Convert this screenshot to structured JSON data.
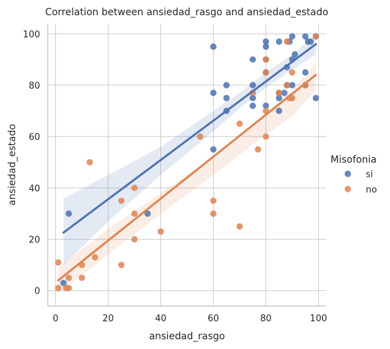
{
  "chart_data": {
    "type": "scatter",
    "title": "Correlation between ansiedad_rasgo and ansiedad_estado",
    "xlabel": "ansiedad_rasgo",
    "ylabel": "ansiedad_estado",
    "xlim": [
      -3,
      103
    ],
    "ylim": [
      -6,
      104
    ],
    "xticks": [
      0,
      20,
      40,
      60,
      80,
      100
    ],
    "yticks": [
      0,
      20,
      40,
      60,
      80,
      100
    ],
    "grid": true,
    "legend": {
      "title": "Misofonia",
      "position": "right"
    },
    "series": [
      {
        "name": "si",
        "color": "#4c72b0",
        "points": [
          [
            3,
            3
          ],
          [
            5,
            30
          ],
          [
            35,
            30
          ],
          [
            60,
            55
          ],
          [
            60,
            77
          ],
          [
            60,
            95
          ],
          [
            65,
            75
          ],
          [
            65,
            80
          ],
          [
            65,
            70
          ],
          [
            75,
            72
          ],
          [
            75,
            75
          ],
          [
            75,
            80
          ],
          [
            75,
            90
          ],
          [
            80,
            72
          ],
          [
            80,
            85
          ],
          [
            80,
            90
          ],
          [
            80,
            95
          ],
          [
            80,
            97
          ],
          [
            85,
            70
          ],
          [
            85,
            75
          ],
          [
            85,
            77
          ],
          [
            85,
            97
          ],
          [
            87,
            77
          ],
          [
            88,
            80
          ],
          [
            88,
            87
          ],
          [
            89,
            97
          ],
          [
            90,
            80
          ],
          [
            90,
            90
          ],
          [
            90,
            99
          ],
          [
            91,
            92
          ],
          [
            95,
            80
          ],
          [
            95,
            85
          ],
          [
            95,
            99
          ],
          [
            96,
            97
          ],
          [
            97,
            97
          ],
          [
            99,
            99
          ],
          [
            99,
            75
          ]
        ],
        "fit": [
          [
            3,
            22.6
          ],
          [
            99,
            96
          ]
        ],
        "ci_upper": [
          [
            3,
            36
          ],
          [
            20,
            45
          ],
          [
            40,
            56
          ],
          [
            60,
            70
          ],
          [
            70,
            77
          ],
          [
            80,
            85
          ],
          [
            90,
            92
          ],
          [
            99,
            99.5
          ]
        ],
        "ci_lower": [
          [
            3,
            10
          ],
          [
            20,
            27
          ],
          [
            40,
            45
          ],
          [
            60,
            62
          ],
          [
            70,
            71
          ],
          [
            80,
            79
          ],
          [
            90,
            86
          ],
          [
            99,
            92
          ]
        ]
      },
      {
        "name": "no",
        "color": "#dd8452",
        "points": [
          [
            1,
            11
          ],
          [
            1,
            1
          ],
          [
            4,
            1
          ],
          [
            5,
            1
          ],
          [
            5,
            5
          ],
          [
            10,
            5
          ],
          [
            10,
            10
          ],
          [
            13,
            50
          ],
          [
            15,
            13
          ],
          [
            25,
            10
          ],
          [
            25,
            35
          ],
          [
            30,
            20
          ],
          [
            30,
            30
          ],
          [
            30,
            40
          ],
          [
            40,
            23
          ],
          [
            55,
            60
          ],
          [
            60,
            30
          ],
          [
            60,
            35
          ],
          [
            70,
            25
          ],
          [
            70,
            65
          ],
          [
            75,
            77
          ],
          [
            77,
            55
          ],
          [
            80,
            60
          ],
          [
            80,
            70
          ],
          [
            80,
            85
          ],
          [
            80,
            90
          ],
          [
            85,
            77
          ],
          [
            88,
            80
          ],
          [
            88,
            97
          ],
          [
            89,
            75
          ],
          [
            90,
            75
          ],
          [
            90,
            85
          ],
          [
            95,
            80
          ],
          [
            99,
            99
          ]
        ],
        "fit": [
          [
            1,
            4
          ],
          [
            99,
            84
          ]
        ],
        "ci_upper": [
          [
            1,
            9
          ],
          [
            20,
            24
          ],
          [
            40,
            38
          ],
          [
            60,
            52
          ],
          [
            75,
            65
          ],
          [
            90,
            78
          ],
          [
            99,
            89
          ]
        ],
        "ci_lower": [
          [
            1,
            -1
          ],
          [
            20,
            14
          ],
          [
            40,
            30
          ],
          [
            60,
            45
          ],
          [
            75,
            57
          ],
          [
            90,
            68
          ],
          [
            99,
            78
          ]
        ]
      }
    ]
  }
}
